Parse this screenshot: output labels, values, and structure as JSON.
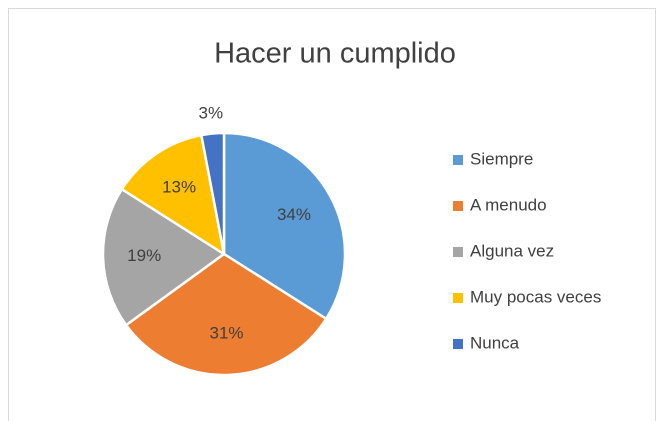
{
  "chart_data": {
    "type": "pie",
    "title": "Hacer un cumplido",
    "categories": [
      "Siempre",
      "A menudo",
      "Alguna vez",
      "Muy pocas veces",
      "Nunca"
    ],
    "values": [
      34,
      31,
      19,
      13,
      3
    ],
    "value_labels": [
      "34%",
      "31%",
      "19%",
      "13%",
      "3%"
    ],
    "colors": [
      "#5b9bd5",
      "#ed7d31",
      "#a5a5a5",
      "#ffc000",
      "#4472c4"
    ],
    "legend": "right"
  }
}
